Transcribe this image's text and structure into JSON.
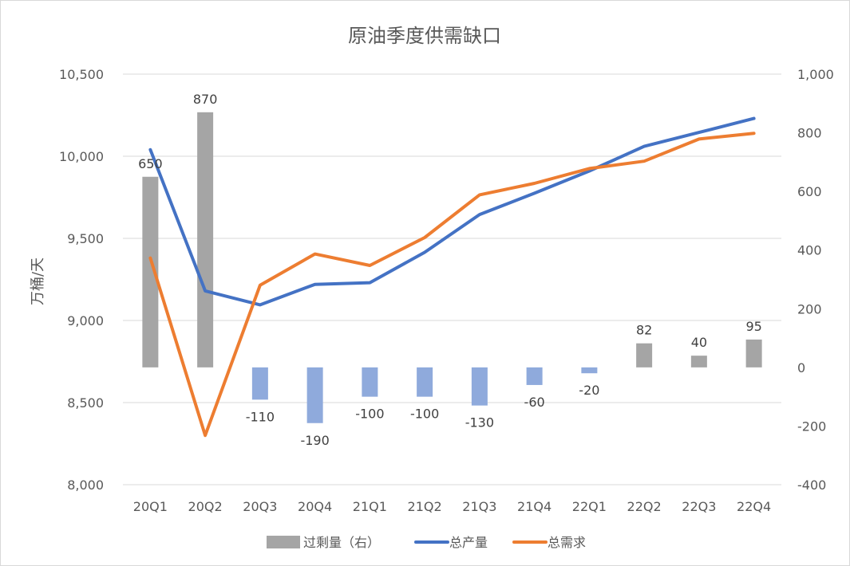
{
  "chart_data": {
    "type": "bar+line",
    "title": "原油季度供需缺口",
    "ylabel": "万桶/天",
    "categories": [
      "20Q1",
      "20Q2",
      "20Q3",
      "20Q4",
      "21Q1",
      "21Q2",
      "21Q3",
      "21Q4",
      "22Q1",
      "22Q2",
      "22Q3",
      "22Q4"
    ],
    "left_axis": {
      "min": 8000,
      "max": 10500,
      "ticks": [
        "8,000",
        "8,500",
        "9,000",
        "9,500",
        "10,000",
        "10,500"
      ],
      "tick_values": [
        8000,
        8500,
        9000,
        9500,
        10000,
        10500
      ]
    },
    "right_axis": {
      "min": -400,
      "max": 1000,
      "ticks": [
        "-400",
        "-200",
        "0",
        "200",
        "400",
        "600",
        "800",
        "1,000"
      ],
      "tick_values": [
        -400,
        -200,
        0,
        200,
        400,
        600,
        800,
        1000
      ]
    },
    "grid": true,
    "legend_position": "bottom",
    "series": [
      {
        "name": "过剩量（右）",
        "kind": "bar",
        "axis": "right",
        "values": [
          650,
          870,
          -110,
          -190,
          -100,
          -100,
          -130,
          -60,
          -20,
          82,
          40,
          95
        ],
        "labels": [
          "650",
          "870",
          "-110",
          "-190",
          "-100",
          "-100",
          "-130",
          "-60",
          "-20",
          "82",
          "40",
          "95"
        ],
        "color_positive": "#a5a5a5",
        "color_negative": "#8faadc"
      },
      {
        "name": "总产量",
        "kind": "line",
        "axis": "left",
        "values": [
          10040,
          9180,
          9095,
          9220,
          9230,
          9415,
          9645,
          9775,
          9910,
          10060,
          10145,
          10230
        ],
        "color": "#4472c4"
      },
      {
        "name": "总需求",
        "kind": "line",
        "axis": "left",
        "values": [
          9380,
          8300,
          9215,
          9405,
          9335,
          9505,
          9765,
          9835,
          9925,
          9970,
          10105,
          10140
        ],
        "color": "#ed7d31"
      }
    ]
  }
}
